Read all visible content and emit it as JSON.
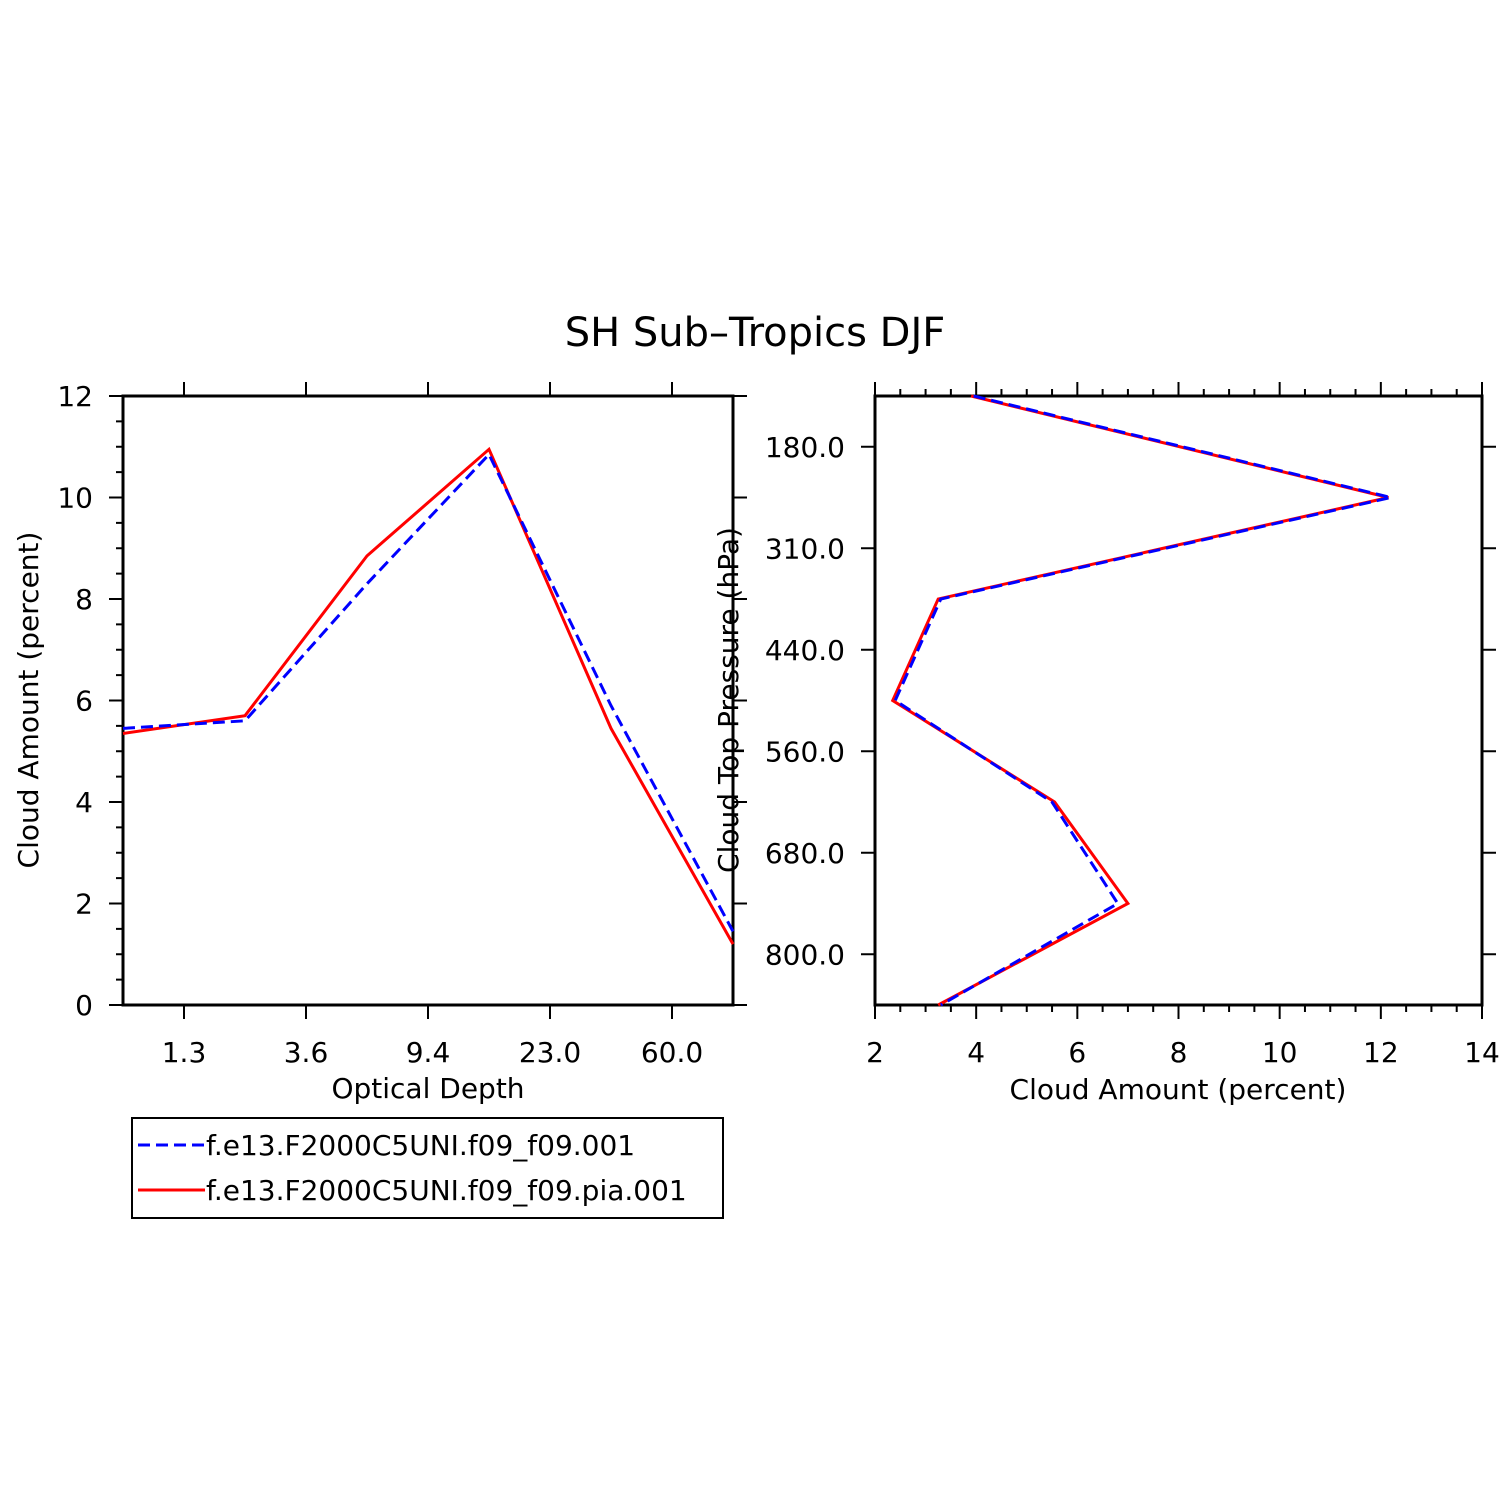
{
  "title": "SH Sub–Tropics DJF",
  "colors": {
    "series_1": "#0000ff",
    "series_2": "#ff0000",
    "axis": "#000000"
  },
  "legend": {
    "placement": "bottom-left",
    "entries": [
      {
        "label": "f.e13.F2000C5UNI.f09_f09.001",
        "color": "#0000ff",
        "style": "dashed"
      },
      {
        "label": "f.e13.F2000C5UNI.f09_f09.pia.001",
        "color": "#ff0000",
        "style": "solid"
      }
    ]
  },
  "chart_data": [
    {
      "type": "line",
      "xlabel": "Optical Depth",
      "ylabel": "Cloud Amount (percent)",
      "x_tick_labels": [
        "1.3",
        "3.6",
        "9.4",
        "23.0",
        "60.0"
      ],
      "y_ticks": [
        "0",
        "2",
        "4",
        "6",
        "8",
        "10",
        "12"
      ],
      "ylim": [
        0,
        12
      ],
      "grid": false,
      "series": [
        {
          "name": "f.e13.F2000C5UNI.f09_f09.001",
          "values": [
            5.45,
            5.6,
            8.3,
            10.85,
            5.9,
            1.45
          ]
        },
        {
          "name": "f.e13.F2000C5UNI.f09_f09.pia.001",
          "values": [
            5.35,
            5.7,
            8.85,
            10.95,
            5.45,
            1.2
          ]
        }
      ]
    },
    {
      "type": "line",
      "xlabel": "Cloud Amount (percent)",
      "ylabel": "Cloud Top Pressure (hPa)",
      "x_ticks": [
        "2",
        "4",
        "6",
        "8",
        "10",
        "12",
        "14"
      ],
      "xlim": [
        2,
        14
      ],
      "y_tick_labels": [
        "180.0",
        "310.0",
        "440.0",
        "560.0",
        "680.0",
        "800.0"
      ],
      "grid": false,
      "series": [
        {
          "name": "f.e13.F2000C5UNI.f09_f09.001",
          "values": [
            3.95,
            12.2,
            3.3,
            2.4,
            5.5,
            6.8,
            3.3
          ]
        },
        {
          "name": "f.e13.F2000C5UNI.f09_f09.pia.001",
          "values": [
            3.9,
            12.15,
            3.25,
            2.35,
            5.55,
            7.0,
            3.25
          ]
        }
      ]
    }
  ]
}
